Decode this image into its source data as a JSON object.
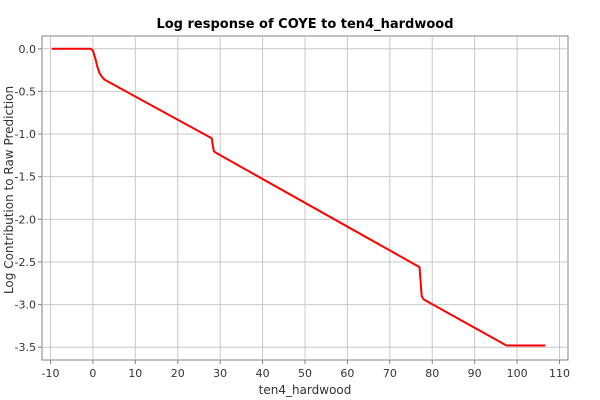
{
  "chart_data": {
    "type": "line",
    "title": "Log response of COYE to ten4_hardwood",
    "xlabel": "ten4_hardwood",
    "ylabel": "Log Contribution to Raw Prediction",
    "xlim": [
      -12,
      112
    ],
    "ylim": [
      -3.65,
      0.15
    ],
    "xticks": [
      "-10",
      "0",
      "10",
      "20",
      "30",
      "40",
      "50",
      "60",
      "70",
      "80",
      "90",
      "100",
      "110"
    ],
    "yticks": [
      "0.0",
      "-0.5",
      "-1.0",
      "-1.5",
      "-2.0",
      "-2.5",
      "-3.0",
      "-3.5"
    ],
    "grid": true,
    "series": [
      {
        "color": "#ff0000",
        "x": [
          -9.5,
          -0.5,
          0,
          0.5,
          1,
          1.5,
          2,
          2.5,
          3,
          28,
          28.5,
          29,
          77,
          77.5,
          78,
          97.5,
          106.5
        ],
        "y": [
          0.0,
          0.0,
          -0.02,
          -0.1,
          -0.2,
          -0.28,
          -0.32,
          -0.35,
          -0.37,
          -1.05,
          -1.2,
          -1.22,
          -2.56,
          -2.9,
          -2.94,
          -3.48,
          -3.48
        ]
      }
    ]
  }
}
